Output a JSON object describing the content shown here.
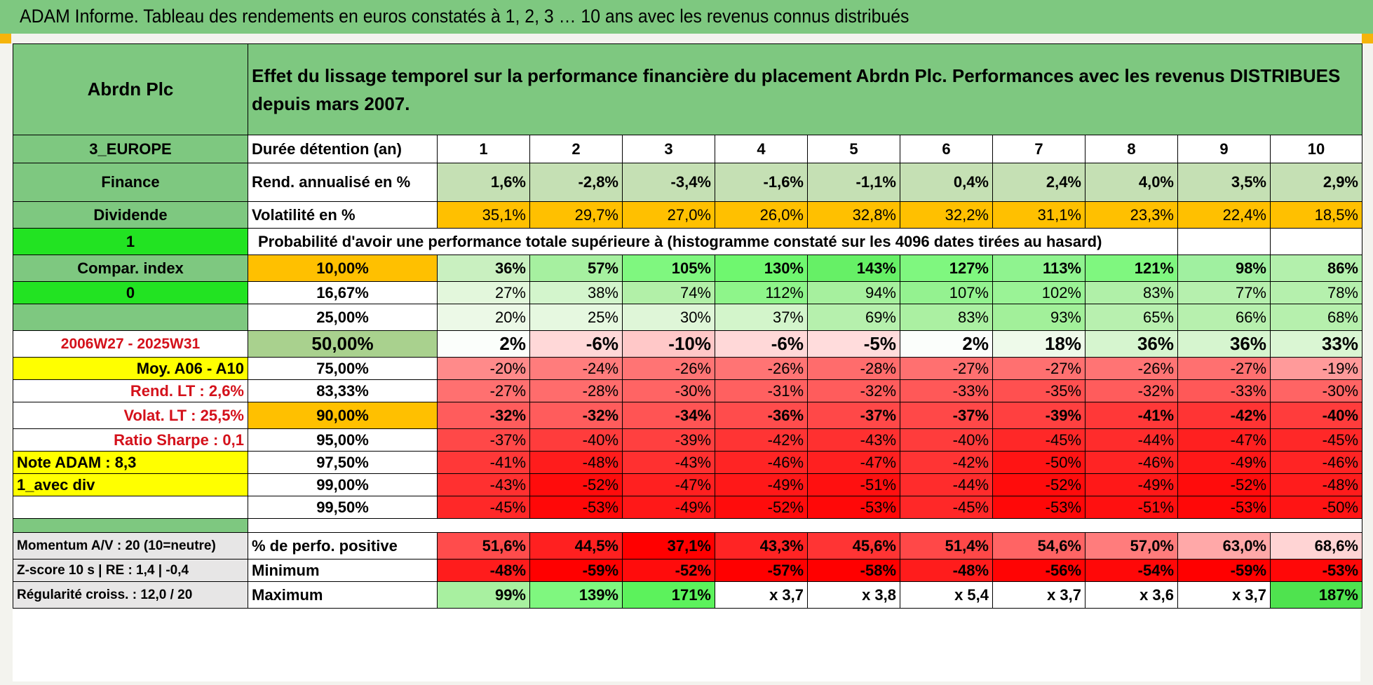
{
  "title": "ADAM Informe. Tableau des rendements en euros constatés à 1, 2, 3 … 10 ans avec les revenus connus distribués",
  "fund": "Abrdn Plc",
  "description": "Effet du lissage temporel sur la performance financière du placement Abrdn Plc. Performances avec les revenus DISTRIBUES depuis mars 2007.",
  "side": {
    "region": "3_EUROPE",
    "sector": "Finance",
    "type": "Dividende",
    "sel1": "1",
    "compar": "Compar. index",
    "sel2": "0",
    "period": "2006W27 - 2025W31",
    "moy": "Moy. A06 - A10",
    "rend_lt": "Rend. LT :    2,6%",
    "volat_lt": "Volat. LT :    25,5%",
    "sharpe": "Ratio Sharpe :    0,1",
    "note": "Note ADAM : 8,3",
    "avec_div": "1_avec div",
    "momentum": "Momentum A/V : 20 (10=neutre)",
    "zscore": "Z-score 10 s | RE : 1,4 | -0,4",
    "regularite": "Régularité croiss. : 12,0 / 20"
  },
  "labels": {
    "duree": "Durée détention (an)",
    "rend": "Rend. annualisé en %",
    "vol": "Volatilité en %",
    "proba": "Probabilité d'avoir une performance totale supérieure à (histogramme constaté sur les 4096 dates tirées au hasard)",
    "pct_pos": "% de perfo. positive",
    "minimum": "Minimum",
    "maximum": "Maximum"
  },
  "years": [
    "1",
    "2",
    "3",
    "4",
    "5",
    "6",
    "7",
    "8",
    "9",
    "10"
  ],
  "rend": [
    "1,6%",
    "-2,8%",
    "-3,4%",
    "-1,6%",
    "-1,1%",
    "0,4%",
    "2,4%",
    "4,0%",
    "3,5%",
    "2,9%"
  ],
  "vol": [
    "35,1%",
    "29,7%",
    "27,0%",
    "26,0%",
    "32,8%",
    "32,2%",
    "31,1%",
    "23,3%",
    "22,4%",
    "18,5%"
  ],
  "quantiles": [
    {
      "q": "10,00%",
      "v": [
        "36%",
        "57%",
        "105%",
        "130%",
        "143%",
        "127%",
        "113%",
        "121%",
        "98%",
        "86%"
      ],
      "c": [
        "#c9f0c0",
        "#a6f0a0",
        "#7ff77f",
        "#6ff76f",
        "#66f066",
        "#7ff77f",
        "#8ff38f",
        "#7ff77f",
        "#a0f0a0",
        "#b3f0ac"
      ]
    },
    {
      "q": "16,67%",
      "v": [
        "27%",
        "38%",
        "74%",
        "112%",
        "94%",
        "107%",
        "102%",
        "83%",
        "77%",
        "78%"
      ],
      "c": [
        "#e3f7dc",
        "#d3f5cc",
        "#b2f0a8",
        "#8ef58a",
        "#a6f09e",
        "#94f290",
        "#9af396",
        "#b0f0a8",
        "#b6f0ae",
        "#b5f0ad"
      ]
    },
    {
      "q": "25,00%",
      "v": [
        "20%",
        "25%",
        "30%",
        "37%",
        "69%",
        "83%",
        "93%",
        "65%",
        "66%",
        "68%"
      ],
      "c": [
        "#ecf9e7",
        "#e6f8e0",
        "#dff6d8",
        "#d3f5cb",
        "#b6f0ad",
        "#abf0a2",
        "#a2f09a",
        "#b8f0af",
        "#b7f0ae",
        "#b6f0ad"
      ]
    },
    {
      "q": "50,00%",
      "v": [
        "2%",
        "-6%",
        "-10%",
        "-6%",
        "-5%",
        "2%",
        "18%",
        "36%",
        "36%",
        "33%"
      ],
      "c": [
        "#fbfefb",
        "#ffd8d8",
        "#ffc8c8",
        "#ffd8d8",
        "#ffdcdc",
        "#fbfefb",
        "#eefaea",
        "#d6f5cf",
        "#d6f5cf",
        "#daf6d3"
      ]
    },
    {
      "q": "75,00%",
      "v": [
        "-20%",
        "-24%",
        "-26%",
        "-26%",
        "-28%",
        "-27%",
        "-27%",
        "-26%",
        "-27%",
        "-19%"
      ],
      "c": [
        "#ff8a8a",
        "#ff7c7c",
        "#ff7474",
        "#ff7474",
        "#ff6c6c",
        "#ff7070",
        "#ff7070",
        "#ff7474",
        "#ff7070",
        "#ff9a9a"
      ]
    },
    {
      "q": "83,33%",
      "v": [
        "-27%",
        "-28%",
        "-30%",
        "-31%",
        "-32%",
        "-33%",
        "-35%",
        "-32%",
        "-33%",
        "-30%"
      ],
      "c": [
        "#ff7070",
        "#ff6c6c",
        "#ff6464",
        "#ff6060",
        "#ff5c5c",
        "#ff5858",
        "#ff5050",
        "#ff5c5c",
        "#ff5858",
        "#ff6464"
      ]
    },
    {
      "q": "90,00%",
      "v": [
        "-32%",
        "-32%",
        "-34%",
        "-36%",
        "-37%",
        "-37%",
        "-39%",
        "-41%",
        "-42%",
        "-40%"
      ],
      "c": [
        "#ff5c5c",
        "#ff5c5c",
        "#ff5454",
        "#ff4c4c",
        "#ff4848",
        "#ff4848",
        "#ff4040",
        "#ff3838",
        "#ff3434",
        "#ff3c3c"
      ]
    },
    {
      "q": "95,00%",
      "v": [
        "-37%",
        "-40%",
        "-39%",
        "-42%",
        "-43%",
        "-40%",
        "-45%",
        "-44%",
        "-47%",
        "-45%"
      ],
      "c": [
        "#ff4848",
        "#ff3c3c",
        "#ff4040",
        "#ff3434",
        "#ff3030",
        "#ff3c3c",
        "#ff2828",
        "#ff2c2c",
        "#ff2020",
        "#ff2828"
      ]
    },
    {
      "q": "97,50%",
      "v": [
        "-41%",
        "-48%",
        "-43%",
        "-46%",
        "-47%",
        "-42%",
        "-50%",
        "-46%",
        "-49%",
        "-46%"
      ],
      "c": [
        "#ff3838",
        "#ff1c1c",
        "#ff3030",
        "#ff2424",
        "#ff2020",
        "#ff3434",
        "#ff1414",
        "#ff2424",
        "#ff1818",
        "#ff2424"
      ]
    },
    {
      "q": "99,00%",
      "v": [
        "-43%",
        "-52%",
        "-47%",
        "-49%",
        "-51%",
        "-44%",
        "-52%",
        "-49%",
        "-52%",
        "-48%"
      ],
      "c": [
        "#ff3030",
        "#ff0c0c",
        "#ff2020",
        "#ff1818",
        "#ff1010",
        "#ff2c2c",
        "#ff0c0c",
        "#ff1818",
        "#ff0c0c",
        "#ff1c1c"
      ]
    },
    {
      "q": "99,50%",
      "v": [
        "-45%",
        "-53%",
        "-49%",
        "-52%",
        "-53%",
        "-45%",
        "-53%",
        "-51%",
        "-53%",
        "-50%"
      ],
      "c": [
        "#ff2828",
        "#ff0808",
        "#ff1818",
        "#ff0c0c",
        "#ff0808",
        "#ff2828",
        "#ff0808",
        "#ff1010",
        "#ff0808",
        "#ff1414"
      ]
    }
  ],
  "pct_pos": [
    "51,6%",
    "44,5%",
    "37,1%",
    "43,3%",
    "45,6%",
    "51,4%",
    "54,6%",
    "57,0%",
    "63,0%",
    "68,6%"
  ],
  "pct_pos_c": [
    "#ff4c4c",
    "#ff2020",
    "#ff0000",
    "#ff2424",
    "#ff3434",
    "#ff4848",
    "#ff6464",
    "#ff7c7c",
    "#ffa8a8",
    "#ffd4d4"
  ],
  "minimum": [
    "-48%",
    "-59%",
    "-52%",
    "-57%",
    "-58%",
    "-48%",
    "-56%",
    "-54%",
    "-59%",
    "-53%"
  ],
  "minimum_c": [
    "#ff1c1c",
    "#ff0000",
    "#ff0c0c",
    "#ff0000",
    "#ff0000",
    "#ff1c1c",
    "#ff0404",
    "#ff0808",
    "#ff0000",
    "#ff0808"
  ],
  "maximum": [
    "99%",
    "139%",
    "171%",
    "x 3,7",
    "x 3,8",
    "x 5,4",
    "x 3,7",
    "x 3,6",
    "x 3,7",
    "187%"
  ],
  "maximum_c": [
    "#a8f0a0",
    "#7ff77f",
    "#5cf25c",
    "#ffffff",
    "#ffffff",
    "#ffffff",
    "#ffffff",
    "#ffffff",
    "#ffffff",
    "#4fe34f"
  ]
}
